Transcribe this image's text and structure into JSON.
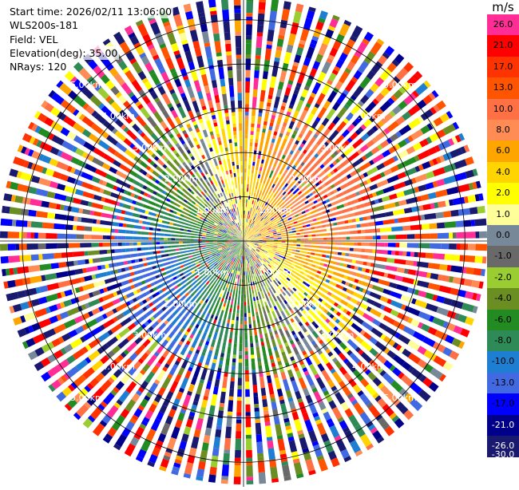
{
  "info": {
    "start_time": "Start time: 2026/02/11 13:06:00",
    "instrument": "WLS200s-181",
    "field": "Field: VEL",
    "elevation": "Elevation(deg): 35.00",
    "nrays": "NRays: 120"
  },
  "colorbar": {
    "unit": "m/s",
    "bins": [
      {
        "label": "26.0",
        "color": "#ff2d95"
      },
      {
        "label": "21.0",
        "color": "#ff0000"
      },
      {
        "label": "17.0",
        "color": "#ff3300"
      },
      {
        "label": "13.0",
        "color": "#ff5500"
      },
      {
        "label": "10.0",
        "color": "#ff7044"
      },
      {
        "label": "8.0",
        "color": "#ff8c55"
      },
      {
        "label": "6.0",
        "color": "#ffa500"
      },
      {
        "label": "4.0",
        "color": "#ffd400"
      },
      {
        "label": "2.0",
        "color": "#ffff00"
      },
      {
        "label": "1.0",
        "color": "#ffff99"
      },
      {
        "label": "0.0",
        "color": "#778899"
      },
      {
        "label": "-1.0",
        "color": "#696969"
      },
      {
        "label": "-2.0",
        "color": "#9acd32"
      },
      {
        "label": "-4.0",
        "color": "#6b8e23"
      },
      {
        "label": "-6.0",
        "color": "#228b22"
      },
      {
        "label": "-8.0",
        "color": "#2e8b57"
      },
      {
        "label": "-10.0",
        "color": "#1e7fd2"
      },
      {
        "label": "-13.0",
        "color": "#4169e1"
      },
      {
        "label": "-17.0",
        "color": "#0000ff"
      },
      {
        "label": "-21.0",
        "color": "#00008b"
      },
      {
        "label": "-26.0",
        "color": "#191970"
      }
    ],
    "bottom_label": "-30.0"
  },
  "chart_data": {
    "type": "heatmap",
    "projection": "polar PPI",
    "field": "VEL",
    "units": "m/s",
    "elevation_deg": 35.0,
    "n_rays": 120,
    "range_rings": [
      {
        "km": 1,
        "label": "1.00km"
      },
      {
        "km": 2,
        "label": "2.00km"
      },
      {
        "km": 3,
        "label": "3.00km"
      },
      {
        "km": 4,
        "label": "4.00km"
      },
      {
        "km": 5,
        "label": "5.00km"
      }
    ],
    "max_range_km": 5.5,
    "pattern": "Coherent radial velocity within ~3 km: positive (yellow→orange, 2 to 13 m/s) to the east/north-east, negative (green→blue, -2 to -13 m/s) to the west/south-west; speckled noise of all colours beyond ~3 km.",
    "value_range": [
      -30.0,
      30.0
    ]
  }
}
